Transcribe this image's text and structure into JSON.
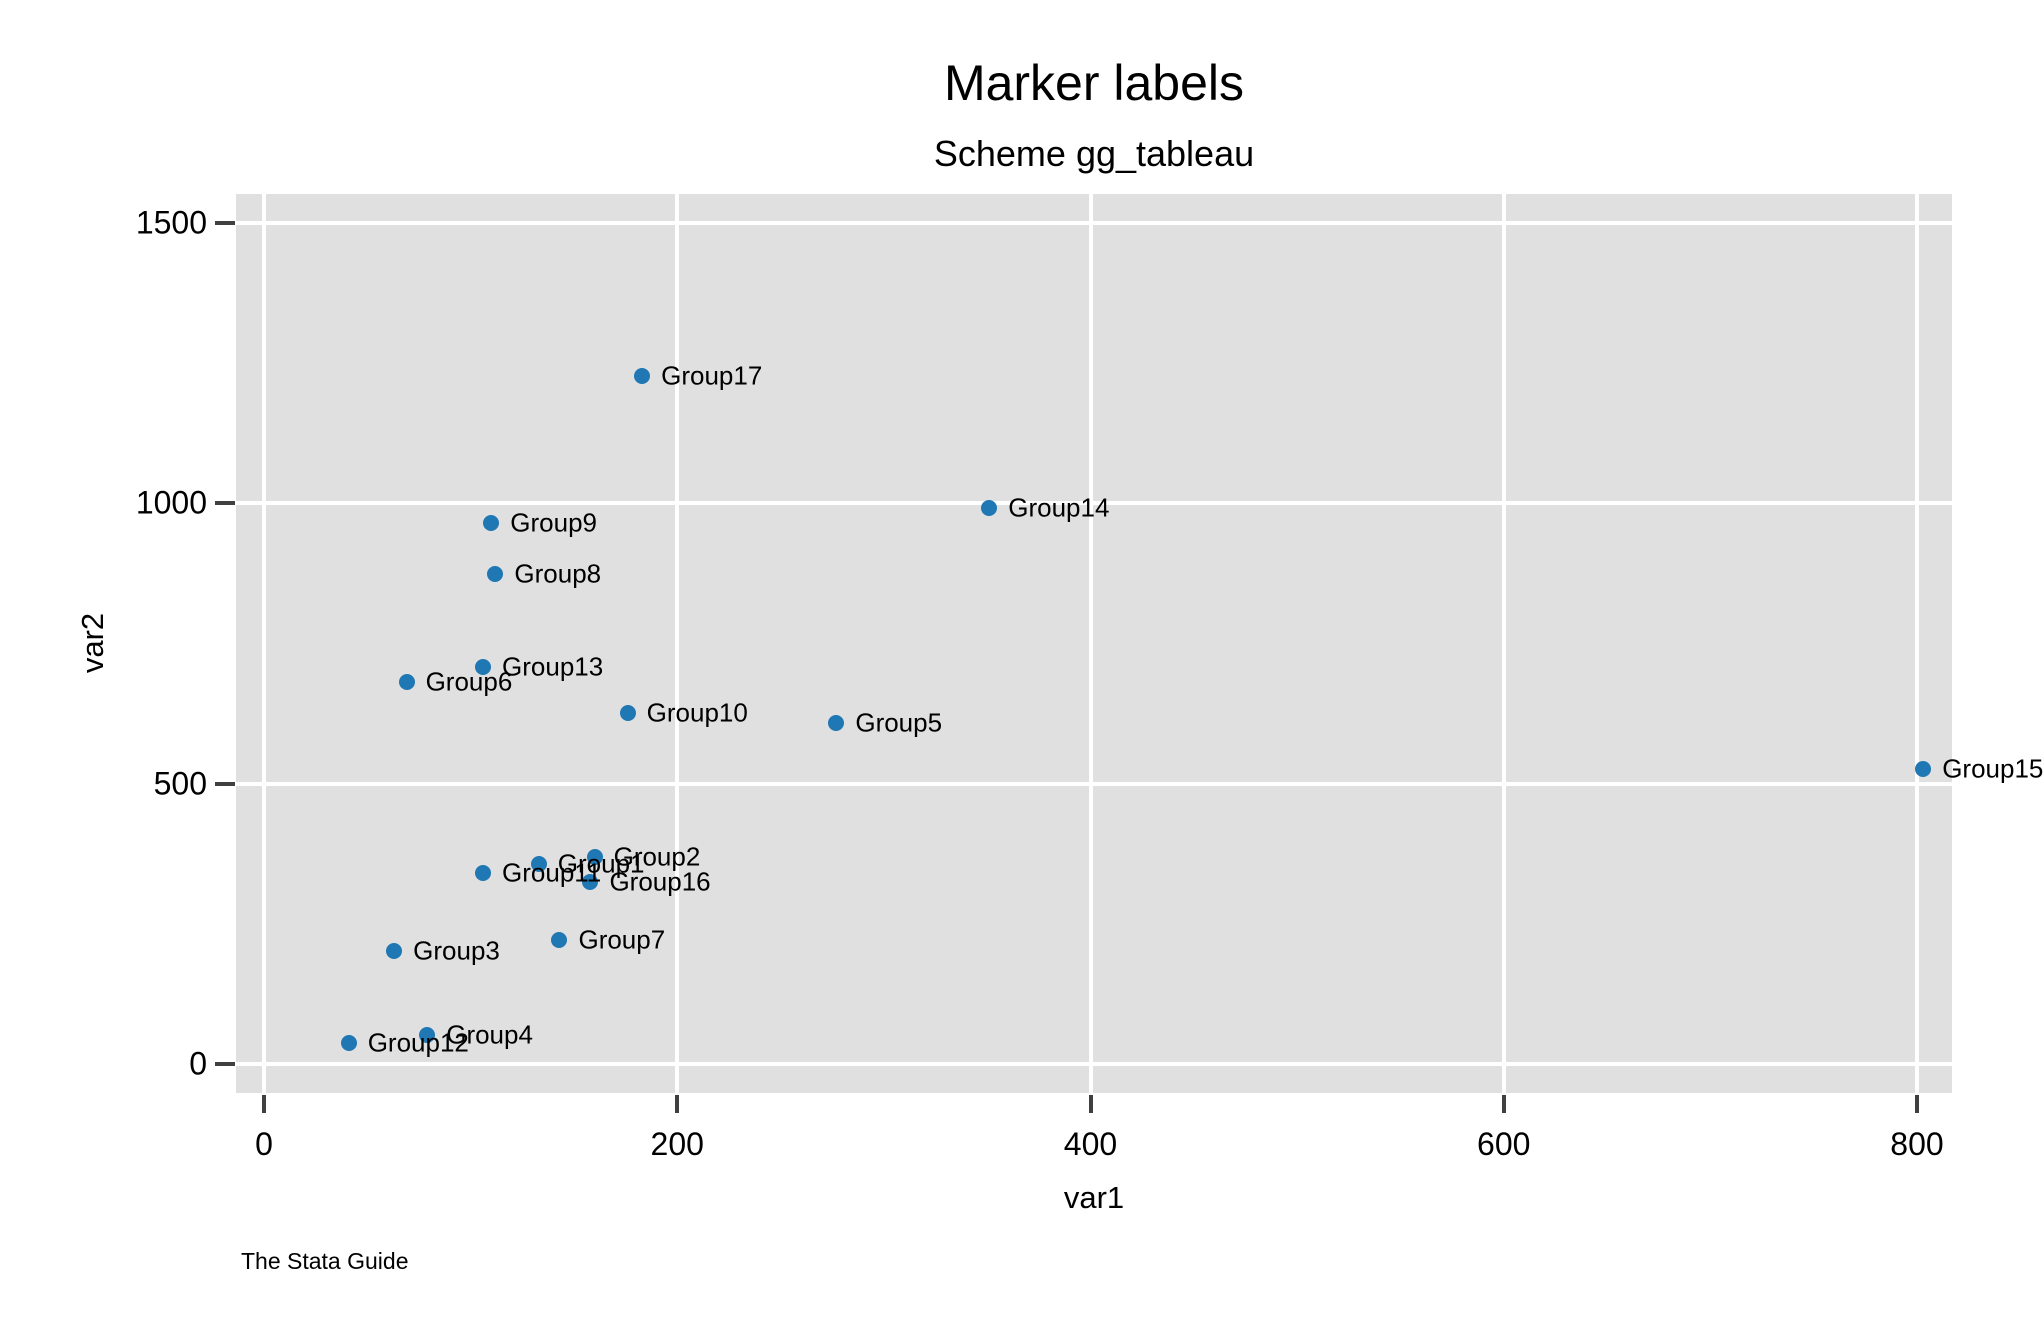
{
  "title": "Marker labels",
  "subtitle": "Scheme gg_tableau",
  "caption": "The Stata Guide",
  "chart_data": {
    "type": "scatter",
    "title": "Marker labels",
    "subtitle": "Scheme gg_tableau",
    "xlabel": "var1",
    "ylabel": "var2",
    "xlim": [
      0,
      800
    ],
    "ylim": [
      0,
      1500
    ],
    "x_ticks": [
      0,
      200,
      400,
      600,
      800
    ],
    "y_ticks": [
      0,
      500,
      1000,
      1500
    ],
    "grid": true,
    "legend_position": "none",
    "colors": {
      "marker": "#1F77B4",
      "plot_background": "#E0E0E0",
      "gridline": "#FFFFFF",
      "tick": "#404040",
      "text": "#000000"
    },
    "points": [
      {
        "label": "Group1",
        "x": 133,
        "y": 357
      },
      {
        "label": "Group2",
        "x": 160,
        "y": 369
      },
      {
        "label": "Group3",
        "x": 63,
        "y": 202
      },
      {
        "label": "Group4",
        "x": 79,
        "y": 52
      },
      {
        "label": "Group5",
        "x": 277,
        "y": 608
      },
      {
        "label": "Group6",
        "x": 69,
        "y": 681
      },
      {
        "label": "Group7",
        "x": 143,
        "y": 221
      },
      {
        "label": "Group8",
        "x": 112,
        "y": 874
      },
      {
        "label": "Group9",
        "x": 110,
        "y": 965
      },
      {
        "label": "Group10",
        "x": 176,
        "y": 626
      },
      {
        "label": "Group11",
        "x": 106,
        "y": 341
      },
      {
        "label": "Group12",
        "x": 41,
        "y": 37
      },
      {
        "label": "Group13",
        "x": 106,
        "y": 708
      },
      {
        "label": "Group14",
        "x": 351,
        "y": 992
      },
      {
        "label": "Group15",
        "x": 803,
        "y": 527
      },
      {
        "label": "Group16",
        "x": 158,
        "y": 325
      },
      {
        "label": "Group17",
        "x": 183,
        "y": 1228
      }
    ]
  }
}
